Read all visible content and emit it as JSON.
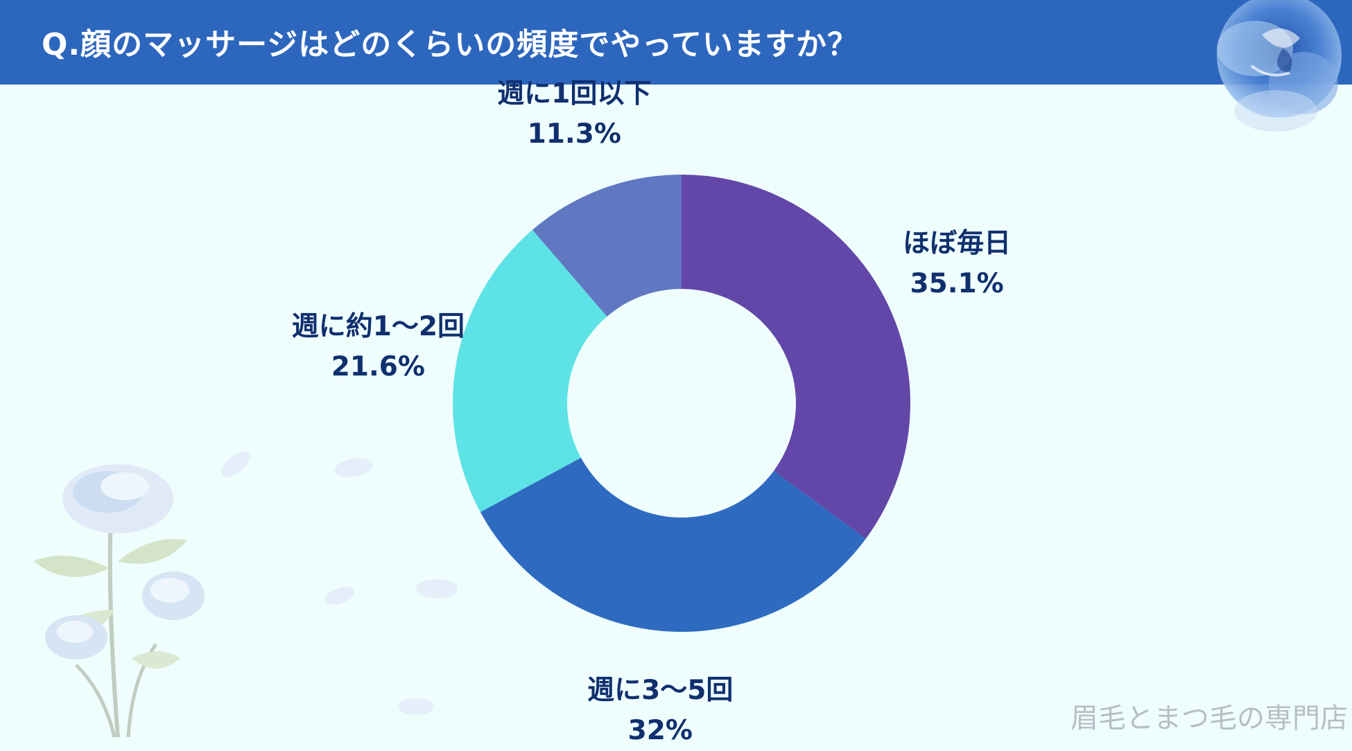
{
  "header": {
    "title": "Q.顔のマッサージはどのくらいの頻度でやっていますか？"
  },
  "chart_data": {
    "type": "pie",
    "categories": [
      "ほぼ毎日",
      "週に3～5回",
      "週に約1～2回",
      "週に1回以下"
    ],
    "values": [
      35.1,
      32,
      21.6,
      11.3
    ],
    "value_labels": [
      "35.1%",
      "32%",
      "21.6%",
      "11.3%"
    ],
    "colors": [
      "#6247a8",
      "#2e6ac0",
      "#5de3e6",
      "#6078c2"
    ],
    "legend": "none"
  },
  "watermark": "眉毛とまつ毛の専門店"
}
